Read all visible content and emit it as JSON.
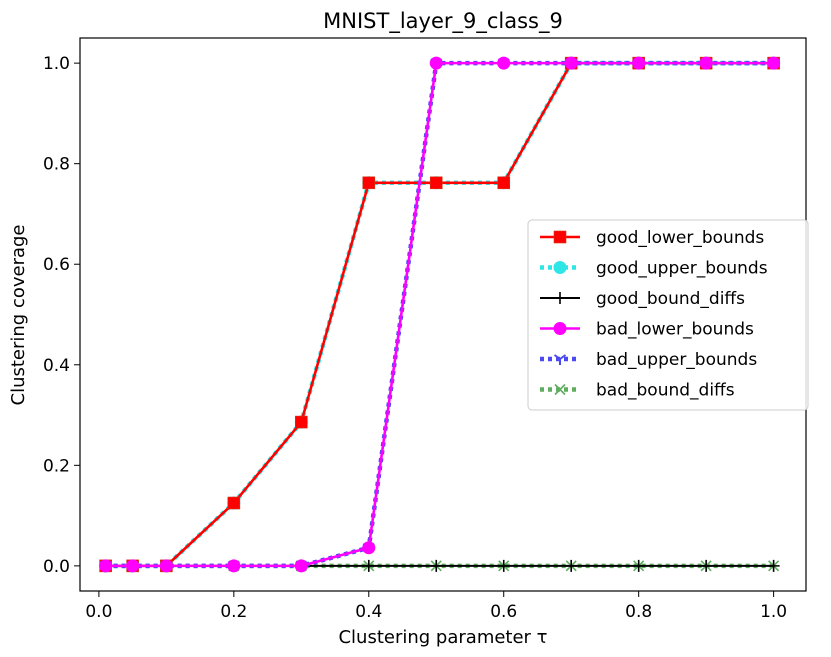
{
  "chart_data": {
    "type": "line",
    "title": "MNIST_layer_9_class_9",
    "xlabel": "Clustering parameter τ",
    "ylabel": "Clustering coverage",
    "xlim": [
      -0.028,
      1.048
    ],
    "ylim": [
      -0.05,
      1.05
    ],
    "xticks": [
      0.0,
      0.2,
      0.4,
      0.6,
      0.8,
      1.0
    ],
    "xtick_labels": [
      "0.0",
      "0.2",
      "0.4",
      "0.6",
      "0.8",
      "1.0"
    ],
    "yticks": [
      0.0,
      0.2,
      0.4,
      0.6,
      0.8,
      1.0
    ],
    "ytick_labels": [
      "0.0",
      "0.2",
      "0.4",
      "0.6",
      "0.8",
      "1.0"
    ],
    "grid": false,
    "legend_position": "center-right",
    "x": [
      0.01,
      0.05,
      0.1,
      0.2,
      0.3,
      0.4,
      0.5,
      0.6,
      0.7,
      0.8,
      0.9,
      1.0
    ],
    "series": [
      {
        "name": "good_lower_bounds",
        "color": "#ff0000",
        "line_style": "solid",
        "marker": "square",
        "values": [
          0.0,
          0.0,
          0.0,
          0.125,
          0.286,
          0.762,
          0.762,
          0.762,
          1.0,
          1.0,
          1.0,
          1.0
        ]
      },
      {
        "name": "good_upper_bounds",
        "color": "#2fe6e6",
        "line_style": "dotted",
        "marker": "circle",
        "values": [
          0.0,
          0.0,
          0.0,
          0.125,
          0.286,
          0.762,
          0.762,
          0.762,
          1.0,
          1.0,
          1.0,
          1.0
        ]
      },
      {
        "name": "good_bound_diffs",
        "color": "#000000",
        "line_style": "solid",
        "marker": "plus",
        "values": [
          0.0,
          0.0,
          0.0,
          0.0,
          0.0,
          0.0,
          0.0,
          0.0,
          0.0,
          0.0,
          0.0,
          0.0
        ]
      },
      {
        "name": "bad_lower_bounds",
        "color": "#ff00ff",
        "line_style": "solid",
        "marker": "circle",
        "values": [
          0.0,
          0.0,
          0.0,
          0.0,
          0.0,
          0.036,
          1.0,
          1.0,
          1.0,
          1.0,
          1.0,
          1.0
        ]
      },
      {
        "name": "bad_upper_bounds",
        "color": "#4a4af0",
        "line_style": "dotted",
        "marker": "tri_down",
        "values": [
          0.0,
          0.0,
          0.0,
          0.0,
          0.0,
          0.036,
          1.0,
          1.0,
          1.0,
          1.0,
          1.0,
          1.0
        ]
      },
      {
        "name": "bad_bound_diffs",
        "color": "#5fad5f",
        "line_style": "dotted",
        "marker": "x",
        "values": [
          0.0,
          0.0,
          0.0,
          0.0,
          0.0,
          0.0,
          0.0,
          0.0,
          0.0,
          0.0,
          0.0,
          0.0
        ]
      }
    ]
  }
}
